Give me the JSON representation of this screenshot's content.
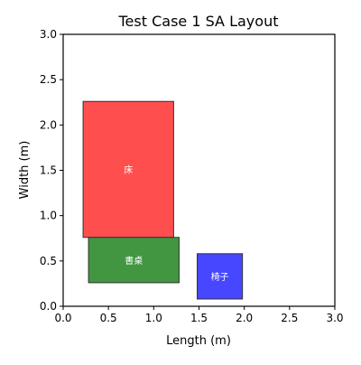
{
  "chart_data": {
    "type": "layout-rectangles",
    "title": "Test Case 1 SA Layout",
    "xlabel": "Length (m)",
    "ylabel": "Width (m)",
    "xlim": [
      0,
      3.0
    ],
    "ylim": [
      0,
      3.0
    ],
    "xticks": [
      "0.0",
      "0.5",
      "1.0",
      "1.5",
      "2.0",
      "2.5",
      "3.0"
    ],
    "yticks": [
      "0.0",
      "0.5",
      "1.0",
      "1.5",
      "2.0",
      "2.5",
      "3.0"
    ],
    "grid": false,
    "rectangles": [
      {
        "label": "床",
        "x": 0.22,
        "y": 0.76,
        "width": 1.0,
        "height": 1.5,
        "color": "#ff3b3b"
      },
      {
        "label": "書桌",
        "x": 0.28,
        "y": 0.26,
        "width": 1.0,
        "height": 0.5,
        "color": "#2e8b2e"
      },
      {
        "label": "椅子",
        "x": 1.48,
        "y": 0.08,
        "width": 0.5,
        "height": 0.5,
        "color": "#3333ff"
      }
    ]
  }
}
